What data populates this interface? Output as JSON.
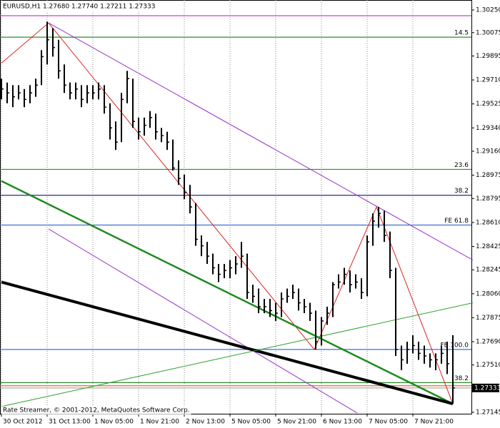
{
  "chart_data": {
    "type": "ohlc",
    "title": "EURUSD,H1  1.27680 1.27740 1.27211 1.27333",
    "footer": "Rate Streamer, © 2001-2012, MetaQuotes Software Corp.",
    "color": "#000000",
    "x": [
      0,
      2,
      4,
      6,
      8,
      10,
      12,
      14,
      16,
      18,
      20,
      22,
      24,
      26,
      28,
      30,
      32,
      34,
      36,
      38,
      40,
      42,
      44,
      46,
      48,
      50,
      52,
      54,
      56,
      58,
      60,
      62,
      64,
      66,
      68,
      70,
      72,
      74,
      76,
      78,
      80,
      82,
      84,
      86,
      88,
      90,
      92,
      94,
      96,
      98,
      100,
      102,
      104,
      106,
      108,
      110,
      112,
      114,
      116,
      118,
      120,
      122,
      124,
      126,
      128,
      130,
      132,
      134,
      136,
      138,
      140,
      142,
      144,
      146,
      148,
      150,
      152,
      154,
      156,
      158
    ],
    "high": [
      1.2972,
      1.2969,
      1.2967,
      1.2967,
      1.2964,
      1.2967,
      1.2972,
      1.2994,
      1.3016,
      1.3011,
      1.3002,
      1.2983,
      1.2969,
      1.2969,
      1.2967,
      1.2967,
      1.2967,
      1.2969,
      1.2967,
      1.2953,
      1.2939,
      1.2961,
      1.2978,
      1.2972,
      1.2942,
      1.2942,
      1.2947,
      1.2945,
      1.2934,
      1.2931,
      1.2925,
      1.2909,
      1.2898,
      1.289,
      1.2876,
      1.2851,
      1.2846,
      1.2837,
      1.2829,
      1.2829,
      1.2832,
      1.2835,
      1.2846,
      1.2837,
      1.2813,
      1.281,
      1.2802,
      1.2802,
      1.2799,
      1.2807,
      1.281,
      1.2813,
      1.281,
      1.2802,
      1.2799,
      1.2793,
      1.2788,
      1.2796,
      1.2815,
      1.2821,
      1.2826,
      1.2824,
      1.2821,
      1.2818,
      1.2851,
      1.2868,
      1.2873,
      1.287,
      1.2854,
      1.2826,
      1.2766,
      1.2769,
      1.2774,
      1.2769,
      1.2766,
      1.276,
      1.276,
      1.2766,
      1.2769,
      1.2774
    ],
    "low": [
      1.2956,
      1.2953,
      1.295,
      1.2956,
      1.295,
      1.2953,
      1.2958,
      1.2967,
      1.2983,
      1.2989,
      1.2972,
      1.2961,
      1.2956,
      1.2956,
      1.295,
      1.2953,
      1.2956,
      1.2956,
      1.2945,
      1.2925,
      1.2917,
      1.2923,
      1.2953,
      1.2934,
      1.2925,
      1.2928,
      1.2934,
      1.2925,
      1.2923,
      1.2917,
      1.2901,
      1.289,
      1.2879,
      1.2868,
      1.2843,
      1.2835,
      1.2829,
      1.2821,
      1.2815,
      1.2818,
      1.2818,
      1.2821,
      1.2826,
      1.2802,
      1.2799,
      1.2791,
      1.2791,
      1.2788,
      1.2785,
      1.2788,
      1.2799,
      1.2802,
      1.2793,
      1.2791,
      1.2785,
      1.2763,
      1.2766,
      1.2782,
      1.2788,
      1.281,
      1.2813,
      1.2807,
      1.281,
      1.2802,
      1.2804,
      1.2843,
      1.2857,
      1.2846,
      1.2818,
      1.2758,
      1.2747,
      1.2752,
      1.276,
      1.2755,
      1.2752,
      1.2749,
      1.2747,
      1.2752,
      1.2744,
      1.27211
    ],
    "close": [
      1.2964,
      1.2961,
      1.2958,
      1.2961,
      1.2956,
      1.2961,
      1.2967,
      1.2989,
      1.3002,
      1.2996,
      1.2978,
      1.2967,
      1.2961,
      1.2964,
      1.2956,
      1.2961,
      1.2961,
      1.2964,
      1.295,
      1.2934,
      1.2923,
      1.2956,
      1.2972,
      1.2939,
      1.2931,
      1.2936,
      1.2942,
      1.2931,
      1.2928,
      1.2923,
      1.2903,
      1.2895,
      1.2884,
      1.2873,
      1.2848,
      1.2843,
      1.2835,
      1.2826,
      1.2821,
      1.2824,
      1.2826,
      1.2829,
      1.2835,
      1.2807,
      1.2804,
      1.2796,
      1.2796,
      1.2793,
      1.2791,
      1.2802,
      1.2804,
      1.2807,
      1.2799,
      1.2796,
      1.2791,
      1.2769,
      1.2785,
      1.2791,
      1.2813,
      1.2815,
      1.2821,
      1.2813,
      1.2815,
      1.2807,
      1.2846,
      1.2862,
      1.2868,
      1.2851,
      1.2824,
      1.2763,
      1.2755,
      1.2763,
      1.2766,
      1.276,
      1.2758,
      1.2755,
      1.2755,
      1.276,
      1.2752,
      1.27333
    ],
    "xlim": [
      0,
      165
    ],
    "ylim": [
      1.27134,
      1.30327
    ],
    "xticks": [
      {
        "value": 0,
        "label": "30 Oct 2012"
      },
      {
        "value": 16,
        "label": "31 Oct 13:00"
      },
      {
        "value": 32,
        "label": "1 Nov 05:00"
      },
      {
        "value": 48,
        "label": "1 Nov 21:00"
      },
      {
        "value": 64,
        "label": "2 Nov 13:00"
      },
      {
        "value": 80,
        "label": "5 Nov 05:00"
      },
      {
        "value": 96,
        "label": "5 Nov 21:00"
      },
      {
        "value": 112,
        "label": "6 Nov 13:00"
      },
      {
        "value": 128,
        "label": "7 Nov 05:00"
      },
      {
        "value": 144,
        "label": "7 Nov 21:00"
      }
    ],
    "yticks": [
      {
        "value": 1.3025,
        "label": "1.30250"
      },
      1.30075,
      1.29895,
      {
        "value": 1.2971,
        "label": "1.29710"
      },
      1.29525,
      {
        "value": 1.2934,
        "label": "1.29340"
      },
      {
        "value": 1.2916,
        "label": "1.29160"
      },
      1.28975,
      1.28795,
      {
        "value": 1.2861,
        "label": "1.28610"
      },
      1.28425,
      1.28245,
      {
        "value": 1.2806,
        "label": "1.28060"
      },
      1.27875,
      {
        "value": 1.2769,
        "label": "1.27690"
      },
      {
        "value": 1.2751,
        "label": "1.27510"
      },
      1.27145
    ],
    "grid": true,
    "levels": [
      {
        "value": 1.30206,
        "color": "#cc44cc"
      },
      {
        "value": 1.3004,
        "color": "#2e8b2e",
        "label": "14.5"
      },
      {
        "value": 1.2902,
        "color": "#2e8b2e",
        "label": "23.6"
      },
      {
        "value": 1.2882,
        "color": "#2a2a8a",
        "label": "38.2"
      },
      {
        "value": 1.2859,
        "color": "#3b6fd4",
        "label": "FE 61.8"
      },
      {
        "value": 1.2763,
        "color": "#3b6fd4",
        "label": "FE 100.0"
      },
      {
        "value": 1.27374,
        "color": "#2e8b2e",
        "label": "38.2"
      },
      {
        "value": 1.2735,
        "color": "#e07020"
      }
    ],
    "current_price": {
      "value": 1.27333,
      "color": "#000000"
    },
    "trendlines": [
      {
        "color": "#dd2222",
        "width": 1,
        "points": [
          [
            0,
            1.2984
          ],
          [
            16.5,
            1.3015
          ],
          [
            109.5,
            1.2763
          ],
          [
            131.25,
            1.2873
          ],
          [
            158,
            1.27211
          ]
        ]
      },
      {
        "color": "#9933cc",
        "width": 1,
        "points": [
          [
            16.5,
            1.3015
          ],
          [
            165,
            1.2832
          ]
        ]
      },
      {
        "color": "#9933cc",
        "width": 1,
        "points": [
          [
            16.5,
            1.2856
          ],
          [
            124.5,
            1.2714
          ]
        ]
      },
      {
        "color": "#1f8a1f",
        "width": 2.5,
        "points": [
          [
            0,
            1.2893
          ],
          [
            158,
            1.27211
          ]
        ]
      },
      {
        "color": "#000000",
        "width": 4,
        "points": [
          [
            0,
            1.2815
          ],
          [
            158,
            1.27211
          ]
        ]
      },
      {
        "color": "#2ea02e",
        "width": 1,
        "points": [
          [
            0,
            1.2719
          ],
          [
            165,
            1.2799
          ]
        ]
      }
    ]
  }
}
